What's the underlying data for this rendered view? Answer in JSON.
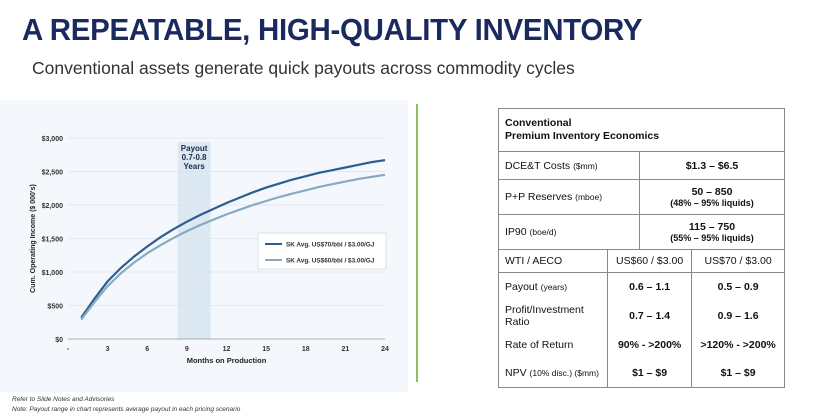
{
  "header": {
    "title": "A REPEATABLE, HIGH-QUALITY INVENTORY",
    "subtitle": "Conventional assets generate quick payouts across commodity cycles"
  },
  "colors": {
    "series1": "#2c5e8f",
    "series2": "#87aac4",
    "payout_band": "#dce8f2",
    "divider": "#8dbf5a",
    "title": "#1b2a5e"
  },
  "chart_data": {
    "type": "line",
    "xlabel": "Months on Production",
    "ylabel": "Cum. Operating Income ($ 000's)",
    "xlim": [
      0,
      24
    ],
    "ylim": [
      0,
      3000
    ],
    "x_ticks": [
      "-",
      "3",
      "6",
      "9",
      "12",
      "15",
      "18",
      "21",
      "24"
    ],
    "y_ticks": [
      "$0",
      "$500",
      "$1,000",
      "$1,500",
      "$2,000",
      "$2,500",
      "$3,000"
    ],
    "annotation": {
      "lines": [
        "Payout",
        "0.7-0.8",
        "Years"
      ],
      "x_range": [
        8.3,
        10.8
      ]
    },
    "legend_position": "right",
    "series": [
      {
        "name": "SK Avg. US$70/bbl / $3.00/GJ",
        "x": [
          1,
          2,
          3,
          4,
          5,
          6,
          7,
          8,
          9,
          10,
          11,
          12,
          13,
          14,
          15,
          16,
          17,
          18,
          19,
          20,
          21,
          22,
          23,
          24
        ],
        "values": [
          320,
          600,
          860,
          1060,
          1230,
          1380,
          1520,
          1640,
          1750,
          1850,
          1940,
          2030,
          2110,
          2190,
          2260,
          2320,
          2380,
          2430,
          2480,
          2520,
          2560,
          2600,
          2640,
          2670
        ]
      },
      {
        "name": "SK Avg. US$60/bbl / $3.00/GJ",
        "x": [
          1,
          2,
          3,
          4,
          5,
          6,
          7,
          8,
          9,
          10,
          11,
          12,
          13,
          14,
          15,
          16,
          17,
          18,
          19,
          20,
          21,
          22,
          23,
          24
        ],
        "values": [
          290,
          550,
          790,
          980,
          1140,
          1280,
          1400,
          1510,
          1610,
          1700,
          1780,
          1860,
          1930,
          2000,
          2060,
          2120,
          2170,
          2220,
          2270,
          2310,
          2350,
          2390,
          2420,
          2450
        ]
      }
    ]
  },
  "table": {
    "title_line1": "Conventional",
    "title_line2": "Premium Inventory Economics",
    "rows_top": [
      {
        "label": "DCE&T Costs",
        "unit": "($mm)",
        "value": "$1.3 – $6.5",
        "sub": ""
      },
      {
        "label": "P+P Reserves",
        "unit": "(mboe)",
        "value": "50 – 850",
        "sub": "(48% – 95% liquids)"
      },
      {
        "label": "IP90",
        "unit": "(boe/d)",
        "value": "115 – 750",
        "sub": "(55% – 95% liquids)"
      }
    ],
    "col_header": {
      "label": "WTI / AECO",
      "c1": "US$60 / $3.00",
      "c2": "US$70 / $3.00"
    },
    "rows_bottom": [
      {
        "label": "Payout",
        "unit": "(years)",
        "c1": "0.6 – 1.1",
        "c2": "0.5 – 0.9"
      },
      {
        "label": "Profit/Investment Ratio",
        "unit": "",
        "c1": "0.7 – 1.4",
        "c2": "0.9 – 1.6"
      },
      {
        "label": "Rate of Return",
        "unit": "",
        "c1": "90% - >200%",
        "c2": ">120% - >200%"
      },
      {
        "label": "NPV",
        "unit": "(10% disc.) ($mm)",
        "c1": "$1 – $9",
        "c2": "$1 – $9"
      }
    ]
  },
  "footnotes": {
    "line1": "Refer to Slide Notes and Advisories",
    "line2": "Note: Payout range in chart represents average payout in each pricing scenario"
  }
}
